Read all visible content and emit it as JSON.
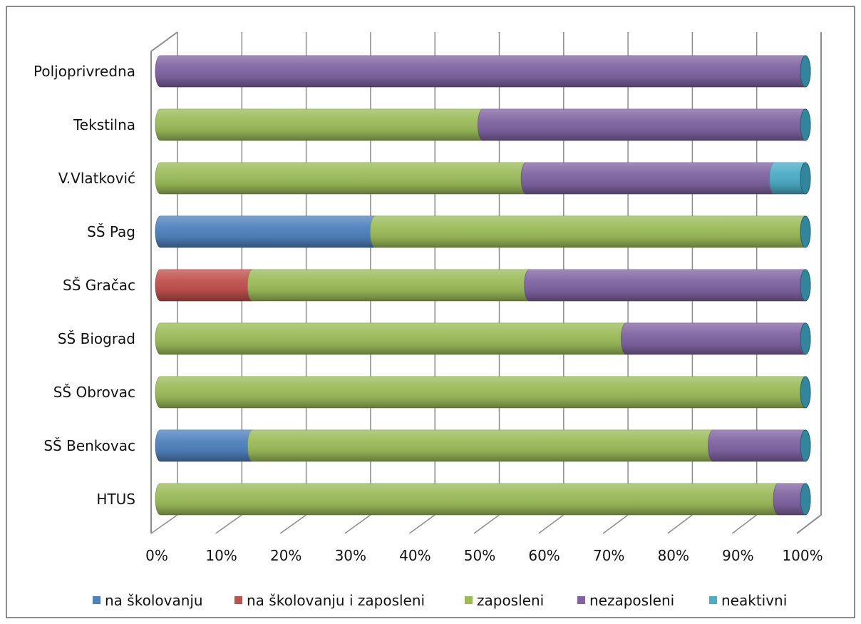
{
  "chart_data": {
    "type": "bar",
    "orientation": "horizontal",
    "stacked": "percent",
    "categories": [
      "Poljoprivredna",
      "Tekstilna",
      "V.Vlatković",
      "SŠ Pag",
      "SŠ Gračac",
      "SŠ Biograd",
      "SŠ Obrovac",
      "SŠ Benkovac",
      "HTUS"
    ],
    "series": [
      {
        "name": "na školovanju",
        "color": "#4f81bd",
        "values": [
          0,
          0,
          0,
          33.3,
          0,
          0,
          0,
          14.3,
          0
        ]
      },
      {
        "name": "na školovanju i zaposleni",
        "color": "#c0504d",
        "values": [
          0,
          0,
          0,
          0,
          14.3,
          0,
          0,
          0,
          0
        ]
      },
      {
        "name": "zaposleni",
        "color": "#9bbb59",
        "values": [
          0,
          50,
          56.7,
          66.7,
          42.9,
          72.2,
          100,
          71.4,
          95.8
        ]
      },
      {
        "name": "nezaposleni",
        "color": "#8064a2",
        "values": [
          100,
          50,
          38.5,
          0,
          42.8,
          27.8,
          0,
          14.3,
          4.2
        ]
      },
      {
        "name": "neaktivni",
        "color": "#4bacc6",
        "values": [
          0,
          0,
          4.8,
          0,
          0,
          0,
          0,
          0,
          0
        ]
      }
    ],
    "x_ticks": [
      "0%",
      "10%",
      "20%",
      "30%",
      "40%",
      "50%",
      "60%",
      "70%",
      "80%",
      "90%",
      "100%"
    ],
    "xlim": [
      0,
      100
    ],
    "grid": true,
    "legend_position": "bottom",
    "style": "3d-cylinder"
  }
}
